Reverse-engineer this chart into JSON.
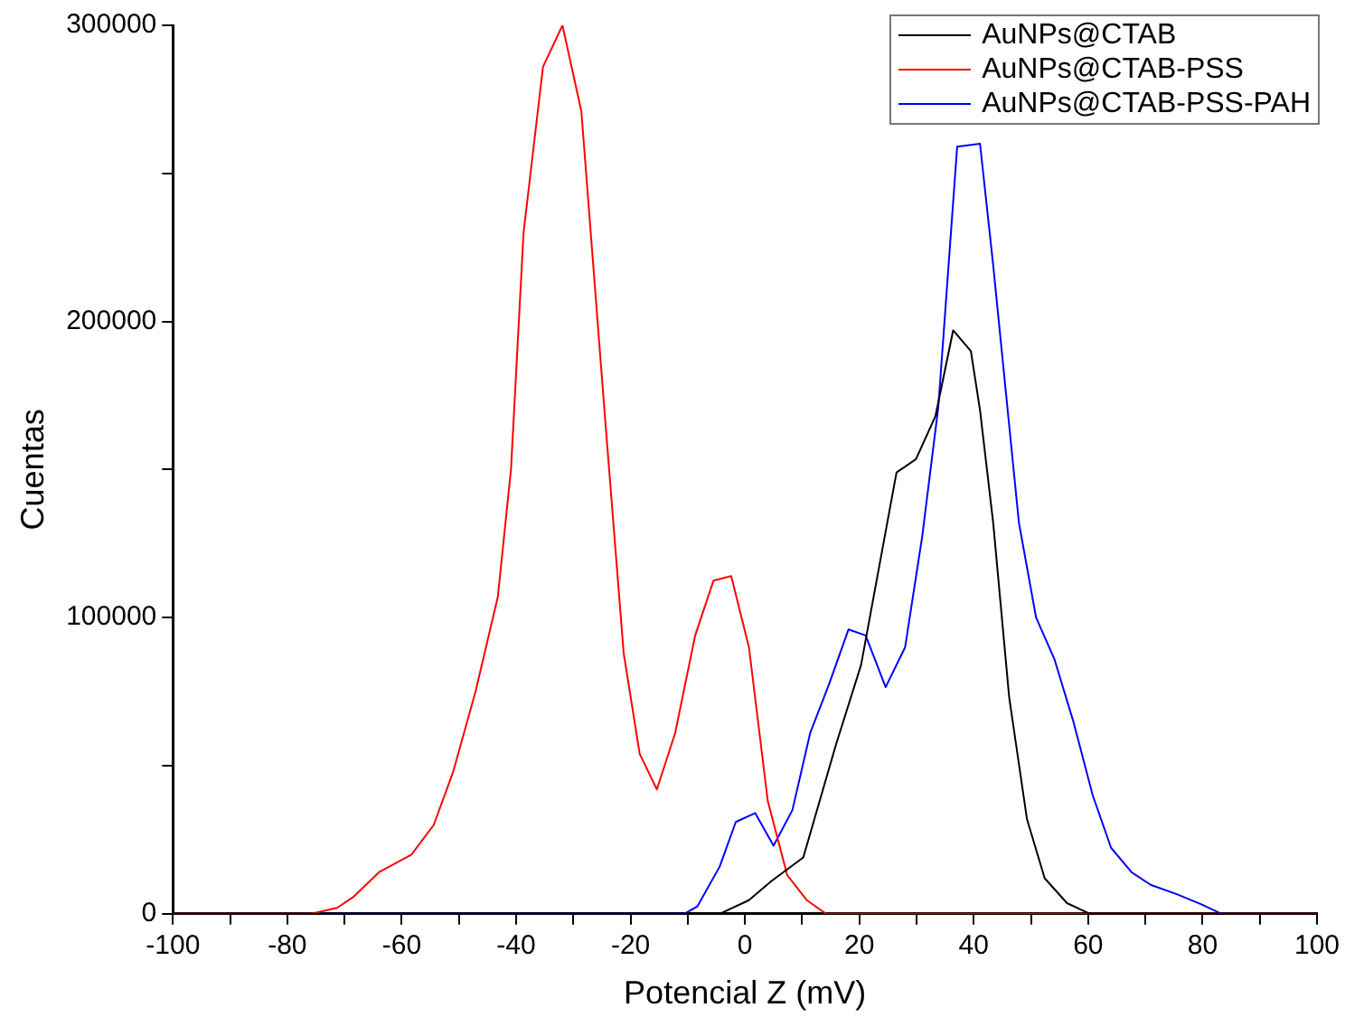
{
  "chart_data": {
    "type": "line",
    "xlabel": "Potencial Z (mV)",
    "ylabel": "Cuentas",
    "xlim": [
      -100,
      100
    ],
    "xticks": [
      -100,
      {
        "value": -90,
        "label": null
      },
      -80,
      {
        "value": -70,
        "label": null
      },
      -60,
      {
        "value": -50,
        "label": null
      },
      -40,
      {
        "value": -30,
        "label": null
      },
      -20,
      {
        "value": -10,
        "label": null
      },
      0,
      {
        "value": 10,
        "label": null
      },
      20,
      {
        "value": 30,
        "label": null
      },
      40,
      {
        "value": 50,
        "label": null
      },
      60,
      {
        "value": 70,
        "label": null
      },
      80,
      {
        "value": 90,
        "label": null
      },
      100
    ],
    "ylim": [
      0,
      300000
    ],
    "yticks": [
      0,
      {
        "value": 50000,
        "label": null
      },
      100000,
      {
        "value": 150000,
        "label": null
      },
      200000,
      {
        "value": 250000,
        "label": null
      },
      300000
    ],
    "grid": false,
    "legend": "top right",
    "marker": "none",
    "line_style": "solid",
    "series": [
      {
        "name": "AuNPs@CTAB",
        "color": "#000000",
        "x": [
          -100,
          -4.4,
          0.7,
          4.6,
          10.2,
          15.9,
          20.3,
          26.5,
          29.9,
          33.3,
          36.4,
          39.5,
          41.1,
          43.4,
          46.2,
          49.3,
          52.4,
          56.3,
          60.3,
          100
        ],
        "values": [
          0,
          0,
          4600,
          11000,
          19000,
          57000,
          84000,
          149000,
          153500,
          168000,
          197000,
          190000,
          170000,
          132000,
          73000,
          32000,
          12000,
          3600,
          0,
          0
        ]
      },
      {
        "name": "AuNPs@CTAB-PSS",
        "color": "#ff0000",
        "x": [
          -100,
          -75.8,
          -71.3,
          -68.5,
          -64,
          -58.3,
          -54.4,
          -51,
          -47.1,
          -43.2,
          -40.9,
          -38.7,
          -35.3,
          -31.9,
          -28.6,
          -24.6,
          -21.2,
          -18.4,
          -15.4,
          -12.2,
          -8.7,
          -5.5,
          -2.4,
          0.7,
          4,
          7.4,
          10.8,
          14.2,
          100
        ],
        "values": [
          0,
          0,
          2000,
          5600,
          14000,
          20000,
          30000,
          48000,
          75000,
          107000,
          150000,
          230000,
          286000,
          300000,
          271000,
          171000,
          88000,
          54000,
          42000,
          61000,
          94000,
          112500,
          114000,
          90000,
          38000,
          13000,
          4600,
          0,
          0
        ]
      },
      {
        "name": "AuNPs@CTAB-PSS-PAH",
        "color": "#0000ff",
        "x": [
          -100,
          -10.6,
          -8.3,
          -4.4,
          -1.6,
          1.8,
          5,
          8.3,
          11.4,
          14.7,
          18.1,
          21.1,
          24.6,
          28,
          31,
          33.8,
          37.1,
          41.1,
          43.4,
          47.9,
          50.9,
          54.1,
          57.4,
          60.8,
          64,
          67.6,
          70.9,
          75.4,
          79.9,
          83.3,
          100
        ],
        "values": [
          0,
          0,
          2500,
          16000,
          31000,
          34000,
          23000,
          35000,
          61000,
          77500,
          96000,
          94000,
          76500,
          90000,
          127500,
          171000,
          259000,
          260000,
          219000,
          132000,
          100000,
          86000,
          65000,
          40000,
          22300,
          14000,
          9800,
          6700,
          3100,
          0,
          0
        ]
      }
    ]
  }
}
